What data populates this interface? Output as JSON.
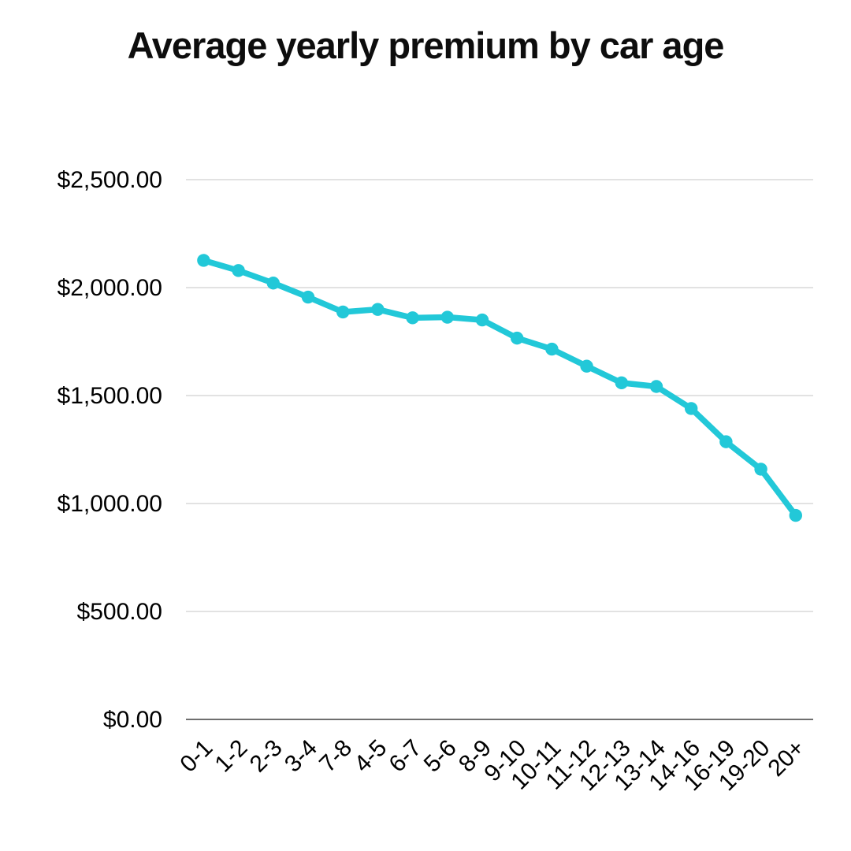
{
  "title": "Average yearly premium by car age",
  "chart_data": {
    "type": "line",
    "title": "Average yearly premium by car age",
    "categories": [
      "0-1",
      "1-2",
      "2-3",
      "3-4",
      "7-8",
      "4-5",
      "6-7",
      "5-6",
      "8-9",
      "9-10",
      "10-11",
      "11-12",
      "12-13",
      "13-14",
      "14-16",
      "16-19",
      "19-20",
      "20+"
    ],
    "values": [
      2126,
      2079,
      2021,
      1956,
      1887,
      1899,
      1860,
      1863,
      1850,
      1766,
      1715,
      1636,
      1559,
      1542,
      1440,
      1286,
      1159,
      945
    ],
    "xlabel": "",
    "ylabel": "",
    "ylim": [
      0,
      2500
    ],
    "y_tick_step": 500,
    "y_tick_labels": [
      "$0.00",
      "$500.00",
      "$1,000.00",
      "$1,500.00",
      "$2,000.00",
      "$2,500.00"
    ],
    "grid": true,
    "legend_position": "none",
    "colors": {
      "line": "#22c8d8",
      "marker": "#22c8d8",
      "gridline": "#d9d9d9",
      "zero_axis": "#6f6f6f",
      "text": "#000000",
      "title_text": "#0d0d0d",
      "background": "#ffffff"
    }
  }
}
